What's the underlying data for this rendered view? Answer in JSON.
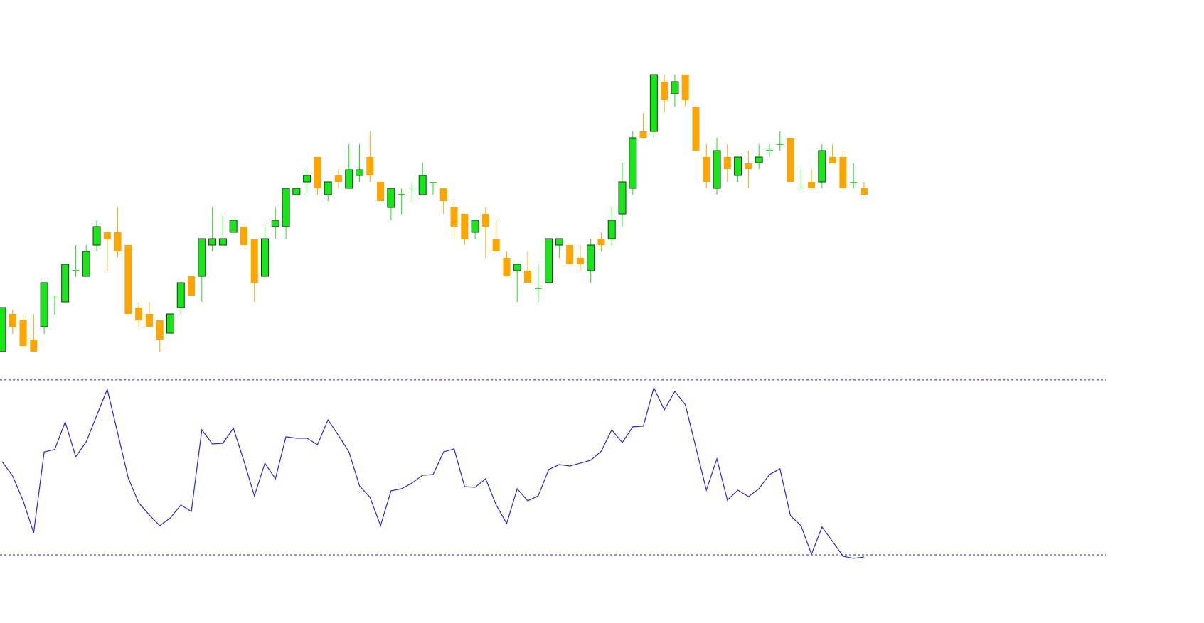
{
  "chart_data": [
    {
      "type": "candlestick",
      "up_color": "#19e619",
      "down_color": "#ffa500",
      "outline_color": "#1a3a1a",
      "ylim": [
        70,
        600
      ],
      "open": [
        105,
        158,
        149,
        122,
        140,
        183,
        175,
        219,
        211,
        255,
        273,
        273,
        255,
        167,
        158,
        149,
        131,
        167,
        211,
        211,
        255,
        255,
        273,
        281,
        264,
        211,
        281,
        281,
        326,
        344,
        379,
        326,
        353,
        335,
        353,
        379,
        344,
        308,
        326,
        335,
        326,
        343,
        335,
        308,
        299,
        273,
        299,
        264,
        237,
        219,
        219,
        193,
        202,
        255,
        255,
        237,
        219,
        264,
        264,
        299,
        335,
        415,
        415,
        485,
        468,
        495,
        450,
        379,
        335,
        379,
        353,
        370,
        371,
        388,
        396,
        406,
        335,
        344,
        344,
        379,
        379,
        343,
        335
      ],
      "high": [
        167,
        164,
        157,
        158,
        202,
        184,
        228,
        255,
        255,
        290,
        273,
        308,
        255,
        175,
        175,
        149,
        158,
        202,
        211,
        264,
        308,
        299,
        290,
        281,
        264,
        281,
        308,
        335,
        335,
        362,
        379,
        344,
        362,
        397,
        397,
        415,
        344,
        335,
        335,
        344,
        371,
        344,
        335,
        317,
        299,
        290,
        308,
        290,
        246,
        228,
        246,
        228,
        264,
        264,
        255,
        255,
        264,
        273,
        308,
        371,
        415,
        441,
        495,
        495,
        495,
        495,
        450,
        397,
        406,
        397,
        379,
        388,
        397,
        397,
        415,
        406,
        362,
        362,
        397,
        397,
        388,
        370,
        344
      ],
      "low": [
        105,
        130,
        113,
        105,
        130,
        157,
        175,
        210,
        211,
        246,
        219,
        238,
        158,
        140,
        140,
        105,
        131,
        157,
        184,
        175,
        246,
        255,
        273,
        255,
        175,
        211,
        264,
        264,
        326,
        326,
        326,
        317,
        335,
        335,
        344,
        344,
        317,
        290,
        299,
        317,
        326,
        326,
        299,
        264,
        255,
        264,
        237,
        246,
        211,
        175,
        202,
        175,
        202,
        237,
        228,
        219,
        202,
        246,
        255,
        281,
        326,
        406,
        406,
        442,
        450,
        450,
        388,
        335,
        326,
        344,
        344,
        335,
        362,
        379,
        388,
        344,
        335,
        335,
        335,
        370,
        335,
        335,
        326
      ],
      "close": [
        167,
        140,
        113,
        105,
        202,
        184,
        228,
        220,
        246,
        281,
        264,
        246,
        158,
        149,
        140,
        122,
        158,
        202,
        184,
        264,
        264,
        264,
        290,
        255,
        202,
        264,
        290,
        335,
        335,
        353,
        335,
        344,
        344,
        361,
        361,
        353,
        317,
        335,
        327,
        336,
        353,
        344,
        317,
        281,
        264,
        290,
        281,
        246,
        211,
        228,
        202,
        194,
        264,
        264,
        228,
        228,
        255,
        255,
        290,
        344,
        406,
        406,
        495,
        459,
        485,
        459,
        388,
        344,
        388,
        362,
        379,
        362,
        379,
        389,
        397,
        344,
        336,
        335,
        388,
        370,
        335,
        344,
        326
      ]
    },
    {
      "type": "line",
      "color": "#2626e6",
      "level_color": "#2626e6",
      "levels": [
        0,
        100
      ],
      "ylim": [
        -39,
        102
      ],
      "values": [
        53.3,
        45.1,
        30.9,
        12.6,
        58.9,
        60.2,
        76.0,
        56.1,
        64.6,
        79.7,
        94.7,
        69.5,
        43.9,
        29.7,
        22.8,
        16.7,
        21.1,
        28.5,
        24.8,
        71.5,
        63.4,
        63.8,
        72.4,
        53.7,
        33.7,
        52.4,
        43.5,
        67.5,
        66.7,
        66.7,
        63.0,
        77.2,
        68.3,
        58.9,
        39.4,
        32.9,
        16.7,
        36.6,
        37.8,
        41.1,
        45.5,
        45.9,
        58.9,
        60.6,
        39.0,
        38.6,
        43.5,
        28.5,
        17.9,
        37.8,
        30.9,
        33.7,
        48.8,
        51.6,
        50.8,
        52.4,
        54.1,
        59.3,
        71.5,
        64.2,
        73.2,
        73.6,
        95.5,
        82.9,
        93.5,
        85.8,
        61.4,
        37.0,
        54.9,
        31.3,
        37.0,
        33.3,
        37.8,
        45.9,
        49.2,
        22.4,
        16.7,
        0.4,
        15.9,
        7.7,
        -0.8,
        -2.0,
        -1.2
      ]
    }
  ]
}
